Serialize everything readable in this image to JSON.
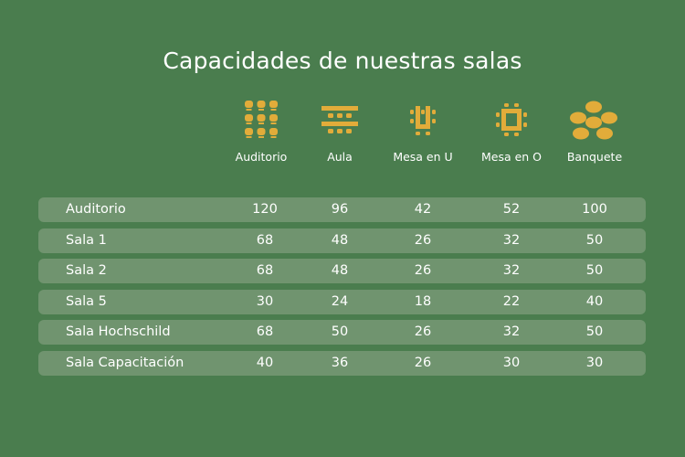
{
  "title": "Capacidades de nuestras salas",
  "accent_color": "#e2ac3a",
  "columns": [
    {
      "label": "Auditorio",
      "icon": "auditorium-seating-icon"
    },
    {
      "label": "Aula",
      "icon": "classroom-seating-icon"
    },
    {
      "label": "Mesa en U",
      "icon": "u-table-icon"
    },
    {
      "label": "Mesa en O",
      "icon": "o-table-icon"
    },
    {
      "label": "Banquete",
      "icon": "banquet-tables-icon"
    }
  ],
  "rows": [
    {
      "room": "Auditorio",
      "values": [
        "120",
        "96",
        "42",
        "52",
        "100"
      ]
    },
    {
      "room": "Sala 1",
      "values": [
        "68",
        "48",
        "26",
        "32",
        "50"
      ]
    },
    {
      "room": "Sala 2",
      "values": [
        "68",
        "48",
        "26",
        "32",
        "50"
      ]
    },
    {
      "room": "Sala 5",
      "values": [
        "30",
        "24",
        "18",
        "22",
        "40"
      ]
    },
    {
      "room": "Sala Hochschild",
      "values": [
        "68",
        "50",
        "26",
        "32",
        "50"
      ]
    },
    {
      "room": "Sala Capacitación",
      "values": [
        "40",
        "36",
        "26",
        "30",
        "30"
      ]
    }
  ]
}
